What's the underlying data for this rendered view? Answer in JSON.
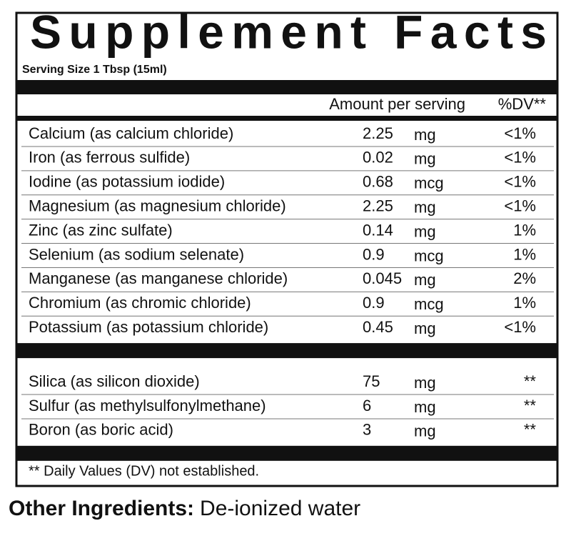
{
  "title": "Supplement Facts",
  "serving_size": "Serving Size 1 Tbsp (15ml)",
  "table": {
    "header": {
      "amount": "Amount per serving",
      "dv": "%DV**"
    },
    "groups": [
      {
        "rows": [
          [
            "Calcium (as calcium chloride)",
            "2.25",
            "mg",
            "<1%"
          ],
          [
            "Iron (as ferrous sulfide)",
            "0.02",
            "mg",
            "<1%"
          ],
          [
            "Iodine (as potassium iodide)",
            "0.68",
            "mcg",
            "<1%"
          ],
          [
            "Magnesium (as magnesium chloride)",
            "2.25",
            "mg",
            "<1%"
          ],
          [
            "Zinc (as zinc sulfate)",
            "0.14",
            "mg",
            "1%"
          ],
          [
            "Selenium (as sodium selenate)",
            "0.9",
            "mcg",
            "1%"
          ],
          [
            "Manganese (as manganese chloride)",
            "0.045",
            "mg",
            "2%"
          ],
          [
            "Chromium (as chromic chloride)",
            "0.9",
            "mcg",
            "1%"
          ],
          [
            "Potassium (as potassium chloride)",
            "0.45",
            "mg",
            "<1%"
          ]
        ]
      },
      {
        "rows": [
          [
            "Silica (as silicon dioxide)",
            "75",
            "mg",
            "**"
          ],
          [
            "Sulfur (as methylsulfonylmethane)",
            "6",
            "mg",
            "**"
          ],
          [
            "Boron (as boric acid)",
            "3",
            "mg",
            "**"
          ]
        ]
      }
    ]
  },
  "footnote": "** Daily Values (DV) not established.",
  "other_ingredients": {
    "label": "Other Ingredients:",
    "text": "De-ionized water"
  }
}
